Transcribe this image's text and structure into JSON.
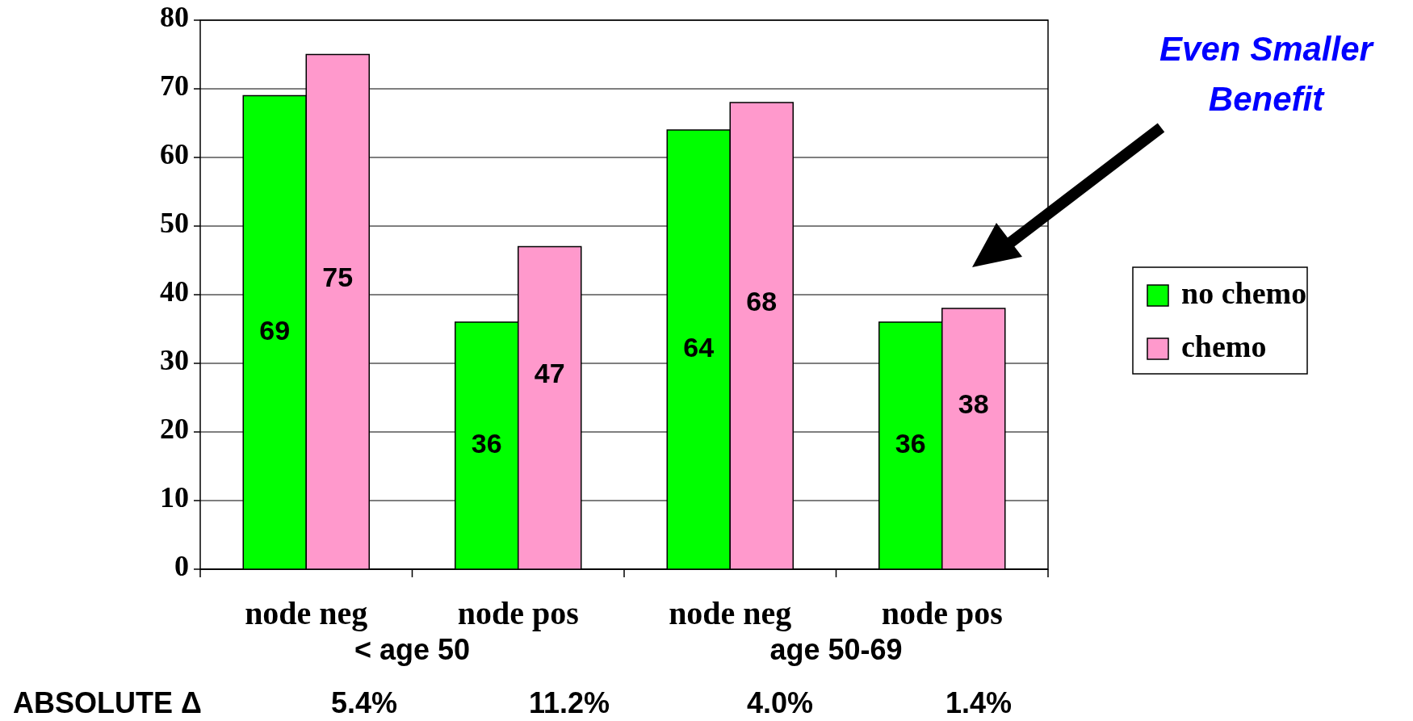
{
  "chart_data": {
    "type": "bar",
    "categories": [
      "node neg",
      "node pos",
      "node neg",
      "node pos"
    ],
    "series": [
      {
        "name": "no chemo",
        "color": "#00ff00",
        "values": [
          69,
          36,
          64,
          36
        ]
      },
      {
        "name": "chemo",
        "color": "#ff99cc",
        "values": [
          75,
          47,
          68,
          38
        ]
      }
    ],
    "ylim": [
      0,
      80
    ],
    "yticks": [
      0,
      10,
      20,
      30,
      40,
      50,
      60,
      70,
      80
    ],
    "grid": "y",
    "legend": "right",
    "data_labels": true,
    "annotations": [
      "< age 50",
      "age 50-69",
      "ABSOLUTE Δ",
      "5.4%",
      "11.2%",
      "4.0%",
      "1.4%",
      "Even Smaller Benefit"
    ]
  }
}
